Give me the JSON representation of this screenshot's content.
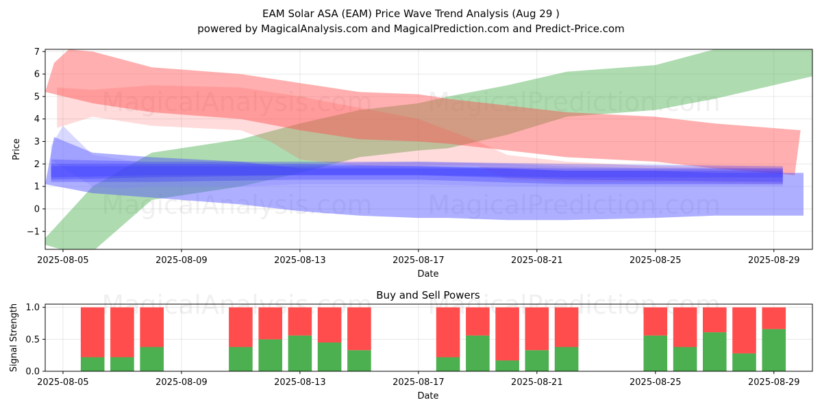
{
  "chart_data": [
    {
      "type": "area",
      "title": "EAM Solar ASA (EAM) Price Wave Trend Analysis (Aug 29 )",
      "subtitle": "powered by MagicalAnalysis.com and MagicalPrediction.com and Predict-Price.com",
      "xlabel": "Date",
      "ylabel": "Price",
      "ylim": [
        -1.8,
        7.1
      ],
      "yticks": [
        -1,
        0,
        1,
        2,
        3,
        4,
        5,
        6,
        7
      ],
      "xticks": [
        {
          "day": 5,
          "label": "2025-08-05"
        },
        {
          "day": 9,
          "label": "2025-08-09"
        },
        {
          "day": 13,
          "label": "2025-08-13"
        },
        {
          "day": 17,
          "label": "2025-08-17"
        },
        {
          "day": 21,
          "label": "2025-08-21"
        },
        {
          "day": 25,
          "label": "2025-08-25"
        },
        {
          "day": 29,
          "label": "2025-08-29"
        }
      ],
      "xlim": [
        4.4,
        30.3
      ],
      "grid": true,
      "watermarks": [
        "MagicalAnalysis.com",
        "MagicalPrediction.com"
      ],
      "bands": [
        {
          "name": "green-uptrend",
          "color": "#4caf50",
          "opacity": 0.45,
          "upper": [
            [
              4.4,
              -1.3
            ],
            [
              6,
              1.0
            ],
            [
              8,
              2.5
            ],
            [
              11,
              3.1
            ],
            [
              13,
              3.8
            ],
            [
              15,
              4.4
            ],
            [
              17,
              4.7
            ],
            [
              18,
              5.0
            ],
            [
              20,
              5.5
            ],
            [
              22,
              6.1
            ],
            [
              25,
              6.4
            ],
            [
              27,
              7.1
            ],
            [
              30.3,
              7.1
            ]
          ],
          "lower": [
            [
              4.4,
              -1.6
            ],
            [
              5.2,
              -1.9
            ],
            [
              6,
              -1.9
            ],
            [
              8,
              0.4
            ],
            [
              11,
              1.0
            ],
            [
              13,
              1.6
            ],
            [
              15,
              2.3
            ],
            [
              17,
              2.6
            ],
            [
              18,
              2.7
            ],
            [
              20,
              3.3
            ],
            [
              22,
              4.1
            ],
            [
              25,
              4.4
            ],
            [
              27,
              4.9
            ],
            [
              30.3,
              5.9
            ]
          ]
        },
        {
          "name": "red-downtrend-main",
          "color": "#ff4d4d",
          "opacity": 0.45,
          "upper": [
            [
              4.7,
              6.5
            ],
            [
              5.2,
              7.1
            ],
            [
              6,
              7.0
            ],
            [
              8,
              6.3
            ],
            [
              11,
              6.0
            ],
            [
              13,
              5.6
            ],
            [
              15,
              5.2
            ],
            [
              17,
              5.1
            ],
            [
              18,
              4.9
            ],
            [
              20,
              4.6
            ],
            [
              22,
              4.3
            ],
            [
              25,
              4.1
            ],
            [
              27,
              3.8
            ],
            [
              29.9,
              3.5
            ]
          ],
          "lower": [
            [
              4.4,
              5.2
            ],
            [
              6,
              4.7
            ],
            [
              8,
              4.3
            ],
            [
              11,
              4.0
            ],
            [
              13,
              3.5
            ],
            [
              15,
              3.1
            ],
            [
              17,
              3.0
            ],
            [
              18,
              2.9
            ],
            [
              20,
              2.6
            ],
            [
              22,
              2.3
            ],
            [
              25,
              2.1
            ],
            [
              27,
              1.8
            ],
            [
              29.7,
              1.5
            ]
          ]
        },
        {
          "name": "red-downtrend-secondary",
          "color": "#ff4d4d",
          "opacity": 0.2,
          "upper": [
            [
              4.8,
              5.4
            ],
            [
              6,
              5.3
            ],
            [
              8,
              5.5
            ],
            [
              11,
              5.4
            ],
            [
              13,
              5.0
            ],
            [
              15,
              4.5
            ],
            [
              17,
              4.0
            ],
            [
              18,
              3.5
            ],
            [
              19,
              3.0
            ],
            [
              20,
              2.4
            ],
            [
              22,
              2.1
            ],
            [
              25,
              1.9
            ],
            [
              29.3,
              1.8
            ]
          ],
          "lower": [
            [
              4.8,
              3.6
            ],
            [
              6,
              4.1
            ],
            [
              8,
              3.7
            ],
            [
              11,
              3.5
            ],
            [
              12,
              3.0
            ],
            [
              13,
              2.2
            ],
            [
              15,
              1.9
            ],
            [
              17,
              1.9
            ],
            [
              18,
              1.9
            ],
            [
              19,
              1.9
            ],
            [
              20,
              1.3
            ],
            [
              22,
              1.2
            ],
            [
              25,
              1.2
            ],
            [
              29.3,
              1.1
            ]
          ]
        },
        {
          "name": "blue-wide-band",
          "color": "#4d4dff",
          "opacity": 0.45,
          "upper": [
            [
              4.7,
              3.2
            ],
            [
              6,
              2.5
            ],
            [
              8,
              2.3
            ],
            [
              11,
              2.1
            ],
            [
              13,
              1.8
            ],
            [
              15,
              1.8
            ],
            [
              17,
              1.8
            ],
            [
              18,
              1.8
            ],
            [
              20,
              1.8
            ],
            [
              22,
              1.7
            ],
            [
              25,
              1.7
            ],
            [
              27,
              1.6
            ],
            [
              30,
              1.6
            ]
          ],
          "lower": [
            [
              4.4,
              1.1
            ],
            [
              6,
              0.7
            ],
            [
              8,
              0.5
            ],
            [
              11,
              0.2
            ],
            [
              13,
              -0.1
            ],
            [
              15,
              -0.3
            ],
            [
              17,
              -0.4
            ],
            [
              18,
              -0.4
            ],
            [
              20,
              -0.5
            ],
            [
              22,
              -0.5
            ],
            [
              25,
              -0.4
            ],
            [
              27,
              -0.3
            ],
            [
              30,
              -0.3
            ]
          ]
        },
        {
          "name": "blue-pale-spike",
          "color": "#8080ff",
          "opacity": 0.3,
          "upper": [
            [
              4.6,
              2.8
            ],
            [
              5,
              3.7
            ],
            [
              6,
              2.4
            ],
            [
              8,
              2.0
            ],
            [
              11,
              2.0
            ],
            [
              13,
              2.0
            ],
            [
              17,
              2.1
            ],
            [
              20,
              2.0
            ],
            [
              22,
              1.9
            ],
            [
              25,
              1.8
            ],
            [
              29.3,
              1.8
            ]
          ],
          "lower": [
            [
              4.6,
              2.2
            ],
            [
              5,
              1.8
            ],
            [
              6,
              1.0
            ],
            [
              7,
              0.9
            ],
            [
              8,
              1.0
            ],
            [
              11,
              1.0
            ],
            [
              13,
              1.1
            ],
            [
              17,
              1.1
            ],
            [
              20,
              1.0
            ],
            [
              22,
              1.0
            ],
            [
              25,
              1.0
            ],
            [
              29.3,
              1.0
            ]
          ]
        },
        {
          "name": "blue-core-1",
          "color": "#3333ff",
          "opacity": 0.3,
          "upper": [
            [
              4.6,
              2.2
            ],
            [
              8,
              2.1
            ],
            [
              13,
              2.1
            ],
            [
              17,
              2.1
            ],
            [
              22,
              2.0
            ],
            [
              29.3,
              1.9
            ]
          ],
          "lower": [
            [
              4.6,
              1.2
            ],
            [
              8,
              1.2
            ],
            [
              13,
              1.3
            ],
            [
              17,
              1.3
            ],
            [
              22,
              1.1
            ],
            [
              29.3,
              1.1
            ]
          ]
        },
        {
          "name": "blue-core-2",
          "color": "#3333ff",
          "opacity": 0.3,
          "upper": [
            [
              4.6,
              2.0
            ],
            [
              8,
              2.0
            ],
            [
              13,
              2.0
            ],
            [
              17,
              1.9
            ],
            [
              22,
              1.8
            ],
            [
              29.3,
              1.8
            ]
          ],
          "lower": [
            [
              4.6,
              1.3
            ],
            [
              8,
              1.4
            ],
            [
              13,
              1.5
            ],
            [
              17,
              1.5
            ],
            [
              22,
              1.3
            ],
            [
              29.3,
              1.2
            ]
          ]
        },
        {
          "name": "blue-core-3",
          "color": "#3333ff",
          "opacity": 0.3,
          "upper": [
            [
              4.6,
              1.9
            ],
            [
              8,
              1.9
            ],
            [
              13,
              1.9
            ],
            [
              17,
              1.9
            ],
            [
              22,
              1.7
            ],
            [
              29.3,
              1.7
            ]
          ],
          "lower": [
            [
              4.6,
              1.4
            ],
            [
              8,
              1.5
            ],
            [
              13,
              1.5
            ],
            [
              17,
              1.5
            ],
            [
              22,
              1.4
            ],
            [
              29.3,
              1.4
            ]
          ]
        }
      ]
    },
    {
      "type": "bar",
      "title": "Buy and Sell Powers",
      "xlabel": "Date",
      "ylabel": "Signal Strength",
      "ylim": [
        0,
        1.05
      ],
      "yticks": [
        0.0,
        0.5,
        1.0
      ],
      "xlim": [
        4.4,
        30.3
      ],
      "grid": true,
      "xticks": [
        {
          "day": 5,
          "label": "2025-08-05"
        },
        {
          "day": 9,
          "label": "2025-08-09"
        },
        {
          "day": 13,
          "label": "2025-08-13"
        },
        {
          "day": 17,
          "label": "2025-08-17"
        },
        {
          "day": 21,
          "label": "2025-08-21"
        },
        {
          "day": 25,
          "label": "2025-08-25"
        },
        {
          "day": 29,
          "label": "2025-08-29"
        }
      ],
      "buy_color": "#4caf50",
      "sell_color": "#ff4d4d",
      "days": [
        6,
        7,
        8,
        11,
        12,
        13,
        14,
        15,
        18,
        19,
        20,
        21,
        22,
        25,
        26,
        27,
        28,
        29
      ],
      "buy": [
        0.22,
        0.22,
        0.38,
        0.38,
        0.5,
        0.56,
        0.45,
        0.33,
        0.22,
        0.56,
        0.17,
        0.33,
        0.38,
        0.56,
        0.38,
        0.61,
        0.28,
        0.66
      ],
      "sell": [
        0.78,
        0.78,
        0.62,
        0.62,
        0.5,
        0.44,
        0.55,
        0.67,
        0.78,
        0.44,
        0.83,
        0.67,
        0.62,
        0.44,
        0.62,
        0.39,
        0.72,
        0.34
      ]
    }
  ]
}
